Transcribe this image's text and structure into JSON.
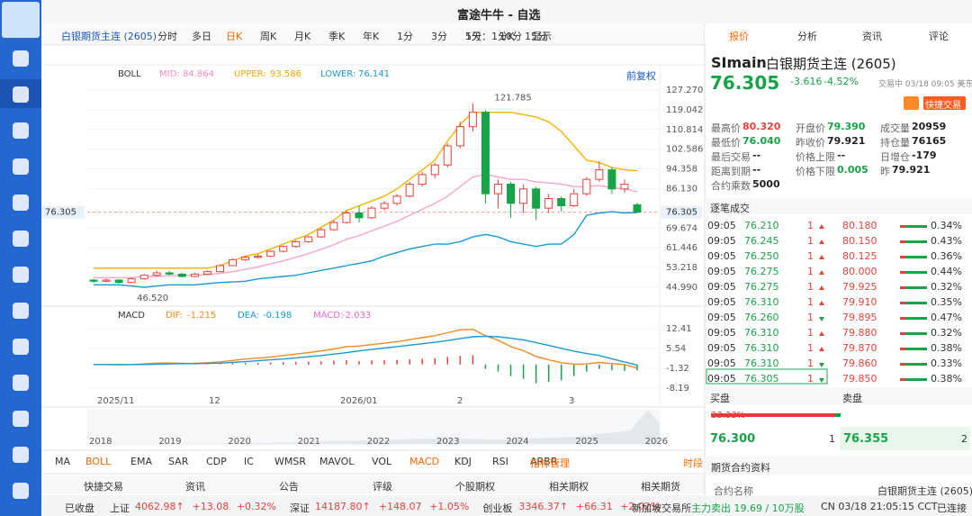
{
  "window": {
    "title": "富途牛牛 - 自选"
  },
  "toolbar": {
    "instrument": "白银期货主连 (2605)",
    "periods": [
      "分时",
      "多日",
      "日K",
      "周K",
      "月K",
      "季K",
      "年K",
      "1分",
      "3分",
      "5分",
      "10分",
      "15分"
    ],
    "active_index": 2,
    "range": "1天：1分K",
    "display": "显示"
  },
  "chart": {
    "indicator": "BOLL",
    "mid_label": "MID:",
    "mid": 84.864,
    "upper_label": "UPPER:",
    "upper": 93.586,
    "lower_label": "LOWER:",
    "lower": 76.141,
    "adjust": "前复权",
    "yticks": [
      {
        "value": 127.27,
        "label": "127.270"
      },
      119.042,
      110.814,
      102.586,
      94.358,
      {
        "value": 86.13,
        "label": "86.130"
      },
      69.674,
      61.446,
      53.218,
      {
        "value": 44.99,
        "label": "44.990"
      }
    ],
    "last_price": 76.305,
    "high_note": 121.785,
    "low_note": {
      "value": 46.52,
      "label": "46.520"
    },
    "candles": [
      [
        48.0,
        48.5,
        46.8,
        47.5
      ],
      [
        47.5,
        48.6,
        47.0,
        48.0
      ],
      [
        48.0,
        48.3,
        46.52,
        47.0
      ],
      [
        47.0,
        49.0,
        46.9,
        48.5
      ],
      [
        48.5,
        50.5,
        48.2,
        50.0
      ],
      [
        50.0,
        52.0,
        49.6,
        51.0
      ],
      [
        51.0,
        51.8,
        50.0,
        50.5
      ],
      [
        50.5,
        50.9,
        49.0,
        49.5
      ],
      [
        49.5,
        51.0,
        49.2,
        50.5
      ],
      [
        50.5,
        52.0,
        50.2,
        51.5
      ],
      [
        51.5,
        54.5,
        51.3,
        54.0
      ],
      [
        54.0,
        57.0,
        53.8,
        56.5
      ],
      [
        56.5,
        58.0,
        56.0,
        57.5
      ],
      [
        57.5,
        58.8,
        57.0,
        58.0
      ],
      [
        58.0,
        60.5,
        57.6,
        60.0
      ],
      [
        60.0,
        62.5,
        59.5,
        62.0
      ],
      [
        62.0,
        64.5,
        61.5,
        64.0
      ],
      [
        64.0,
        66.5,
        63.5,
        66.0
      ],
      [
        66.0,
        69.8,
        65.5,
        69.0
      ],
      [
        69.0,
        72.8,
        68.5,
        72.0
      ],
      [
        72.0,
        77.0,
        71.5,
        76.0
      ],
      [
        76.0,
        79.0,
        72.0,
        74.0
      ],
      [
        74.0,
        78.8,
        73.5,
        78.0
      ],
      [
        78.0,
        81.0,
        77.0,
        80.0
      ],
      [
        80.0,
        84.0,
        79.0,
        83.0
      ],
      [
        83.0,
        89.0,
        82.5,
        88.0
      ],
      [
        88.0,
        93.0,
        87.0,
        92.0
      ],
      [
        92.0,
        97.0,
        90.5,
        96.0
      ],
      [
        96.0,
        105.0,
        95.0,
        104.0
      ],
      [
        104.0,
        114.0,
        103.0,
        112.0
      ],
      [
        112.0,
        121.785,
        110.0,
        118.0
      ],
      [
        118.0,
        119.0,
        80.0,
        84.0
      ],
      [
        84.0,
        90.0,
        78.0,
        88.0
      ],
      [
        88.0,
        89.0,
        74.0,
        80.0
      ],
      [
        80.0,
        88.0,
        76.0,
        86.0
      ],
      [
        86.0,
        87.0,
        73.0,
        78.0
      ],
      [
        78.0,
        84.0,
        76.0,
        82.0
      ],
      [
        82.0,
        83.0,
        76.5,
        79.0
      ],
      [
        79.0,
        86.0,
        78.5,
        84.0
      ],
      [
        84.0,
        91.0,
        83.0,
        90.0
      ],
      [
        90.0,
        97.5,
        89.0,
        94.0
      ],
      [
        94.0,
        95.0,
        84.0,
        86.0
      ],
      [
        86.0,
        90.0,
        84.5,
        88.0
      ],
      [
        79.39,
        80.32,
        76.04,
        76.305
      ]
    ],
    "upper_band": [
      53,
      53,
      53,
      53,
      53,
      53,
      53,
      53,
      53,
      53,
      54,
      56,
      58,
      59,
      61,
      63,
      65,
      67,
      70,
      73,
      77,
      79,
      81,
      83,
      86,
      90,
      94,
      98,
      106,
      113,
      118,
      118,
      118,
      118,
      117,
      116,
      114,
      110,
      104,
      98,
      97,
      95,
      94,
      93.586
    ],
    "mid_band": [
      49,
      49,
      49,
      49,
      49.5,
      49.5,
      49.8,
      50,
      50,
      50.2,
      50.8,
      51.5,
      52.5,
      53.5,
      54.8,
      56,
      57.5,
      59,
      60.8,
      62.8,
      65,
      66.5,
      68.5,
      70.5,
      72.5,
      75,
      77.5,
      80,
      83,
      87,
      91,
      92,
      91,
      90,
      90,
      89,
      88.5,
      88,
      87,
      87,
      87.5,
      86.5,
      86,
      84.864
    ],
    "lower_band": [
      46,
      46,
      46,
      45.5,
      45,
      45.5,
      46,
      46,
      46,
      46.5,
      47,
      47.2,
      47.5,
      48.5,
      49,
      49.5,
      50,
      51,
      52,
      53,
      54,
      55,
      56,
      58,
      59.5,
      61,
      62,
      63,
      63,
      64,
      66,
      67,
      66,
      64,
      63,
      62,
      63,
      63,
      67,
      75,
      76,
      76.5,
      76,
      76.141
    ],
    "xlabels": [
      "2025/11",
      "12",
      "2026/01",
      "2",
      "3"
    ],
    "macd": {
      "name": "MACD",
      "dif_label": "DIF:",
      "dif": -1.215,
      "dea_label": "DEA:",
      "dea": -0.198,
      "macd_label": "MACD:",
      "macd": -2.033,
      "yticks": [
        12.41,
        5.54,
        -1.32,
        -8.19
      ],
      "hist": [
        0.1,
        0.1,
        -0.1,
        0.1,
        0.2,
        0.3,
        0.2,
        0.1,
        0.1,
        0.2,
        0.3,
        0.5,
        0.6,
        0.6,
        0.7,
        0.8,
        0.9,
        1.0,
        1.1,
        1.3,
        1.5,
        1.2,
        1.4,
        1.5,
        1.6,
        1.8,
        2.0,
        2.2,
        2.6,
        3.0,
        3.2,
        -1.5,
        -2.5,
        -4,
        -5,
        -6.5,
        -6,
        -5.5,
        -4,
        -2.5,
        -1.5,
        -2,
        -2.2,
        -2.033
      ],
      "dif_line": [
        0,
        0,
        -0.1,
        0,
        0.2,
        0.5,
        0.5,
        0.4,
        0.4,
        0.6,
        0.9,
        1.4,
        1.9,
        2.2,
        2.6,
        3.1,
        3.6,
        4.1,
        4.7,
        5.4,
        6.2,
        6.4,
        6.9,
        7.4,
        7.9,
        8.6,
        9.3,
        10.0,
        11.0,
        12.0,
        12.2,
        10.0,
        8.4,
        6.2,
        4.8,
        2.8,
        1.6,
        0.6,
        0.1,
        0.2,
        0.7,
        0.3,
        0.0,
        -1.215
      ],
      "dea_line": [
        0,
        0,
        0,
        0,
        0,
        0.1,
        0.2,
        0.3,
        0.3,
        0.4,
        0.5,
        0.7,
        1.0,
        1.3,
        1.6,
        1.9,
        2.3,
        2.7,
        3.1,
        3.6,
        4.1,
        4.7,
        5.2,
        5.7,
        6.2,
        6.7,
        7.2,
        7.7,
        8.3,
        9.0,
        9.6,
        9.8,
        9.6,
        9.1,
        8.5,
        7.6,
        6.6,
        5.6,
        4.6,
        3.8,
        3.1,
        2.0,
        0.9,
        -0.198
      ]
    },
    "overview_years": [
      "2018",
      "2019",
      "2020",
      "2021",
      "2022",
      "2023",
      "2024",
      "2025",
      "2026"
    ]
  },
  "indicator_tabs": [
    "MA",
    "BOLL",
    "EMA",
    "SAR",
    "CDP",
    "IC",
    "WMSR",
    "MAVOL",
    "VOL",
    "MACD",
    "KDJ",
    "RSI",
    "ARBR"
  ],
  "indicator_manage": "指标管理",
  "session": "时段",
  "bottom_tabs": [
    "快捷交易",
    "资讯",
    "公告",
    "评级",
    "个股期权",
    "相关期权",
    "相关期货"
  ],
  "status": {
    "closed": "已收盘",
    "indices": [
      {
        "name": "上证",
        "value": "4062.98↑",
        "change": "+13.08",
        "pct": "+0.32%"
      },
      {
        "name": "深证",
        "value": "14187.80↑",
        "change": "+148.07",
        "pct": "+1.05%"
      },
      {
        "name": "创业板",
        "value": "3346.37↑",
        "change": "+66.31",
        "pct": "+2.02%"
      }
    ],
    "exchange": "新加坡交易所",
    "flow": "主力卖出 19.69 / 10万股",
    "time": "CN 03/18 21:05:15 CCT",
    "conn": "已连接"
  },
  "quote": {
    "tabs": [
      "报价",
      "分析",
      "资讯",
      "评论"
    ],
    "symbol": "SImain",
    "name": "白银期货主连 (2605)",
    "price": 76.305,
    "change": -3.616,
    "pct": "-4.52%",
    "state": "交易中 03/18 09:05 美东",
    "trade_btn": "快捷交易",
    "stats": [
      [
        [
          "最高价",
          "80.320"
        ],
        [
          "最低价",
          "76.040"
        ],
        [
          "最后交易",
          "--"
        ],
        [
          "距离到期",
          "--"
        ],
        [
          "合约乘数",
          "5000"
        ]
      ],
      [
        [
          "开盘价",
          "79.390"
        ],
        [
          "昨收价",
          "79.921"
        ],
        [
          "价格上限",
          "--"
        ],
        [
          "价格下限",
          "0.005"
        ]
      ],
      [
        [
          "成交量",
          "20959"
        ],
        [
          "持仓量",
          "76165"
        ],
        [
          "日增仓",
          "-179"
        ],
        [
          "昨",
          "79.921"
        ]
      ]
    ]
  },
  "trades": {
    "title": "逐笔成交",
    "rows": [
      [
        "09:05",
        "76.210",
        "1",
        "up",
        "80.180",
        "0.34%"
      ],
      [
        "09:05",
        "76.245",
        "1",
        "up",
        "80.150",
        "0.43%"
      ],
      [
        "09:05",
        "76.250",
        "1",
        "up",
        "80.125",
        "0.36%"
      ],
      [
        "09:05",
        "76.275",
        "1",
        "up",
        "80.000",
        "0.44%"
      ],
      [
        "09:05",
        "76.275",
        "1",
        "up",
        "79.925",
        "0.32%"
      ],
      [
        "09:05",
        "76.310",
        "1",
        "up",
        "79.910",
        "0.35%"
      ],
      [
        "09:05",
        "76.260",
        "1",
        "down",
        "79.895",
        "0.47%"
      ],
      [
        "09:05",
        "76.310",
        "1",
        "up",
        "79.880",
        "0.32%"
      ],
      [
        "09:05",
        "76.310",
        "1",
        "up",
        "79.870",
        "0.38%"
      ],
      [
        "09:05",
        "76.310",
        "1",
        "down",
        "79.860",
        "0.33%"
      ],
      [
        "09:05",
        "76.305",
        "1",
        "down",
        "79.850",
        "0.38%"
      ]
    ]
  },
  "book": {
    "bid_title": "买盘",
    "ask_title": "卖盘",
    "bid_pct": "33.33%",
    "bid_price": "76.300",
    "bid_qty": "1",
    "ask_price": "76.355",
    "ask_qty": "2"
  },
  "contract": {
    "title": "期货合约资料",
    "name_label": "合约名称",
    "name": "白银期货主连 (2605)"
  }
}
